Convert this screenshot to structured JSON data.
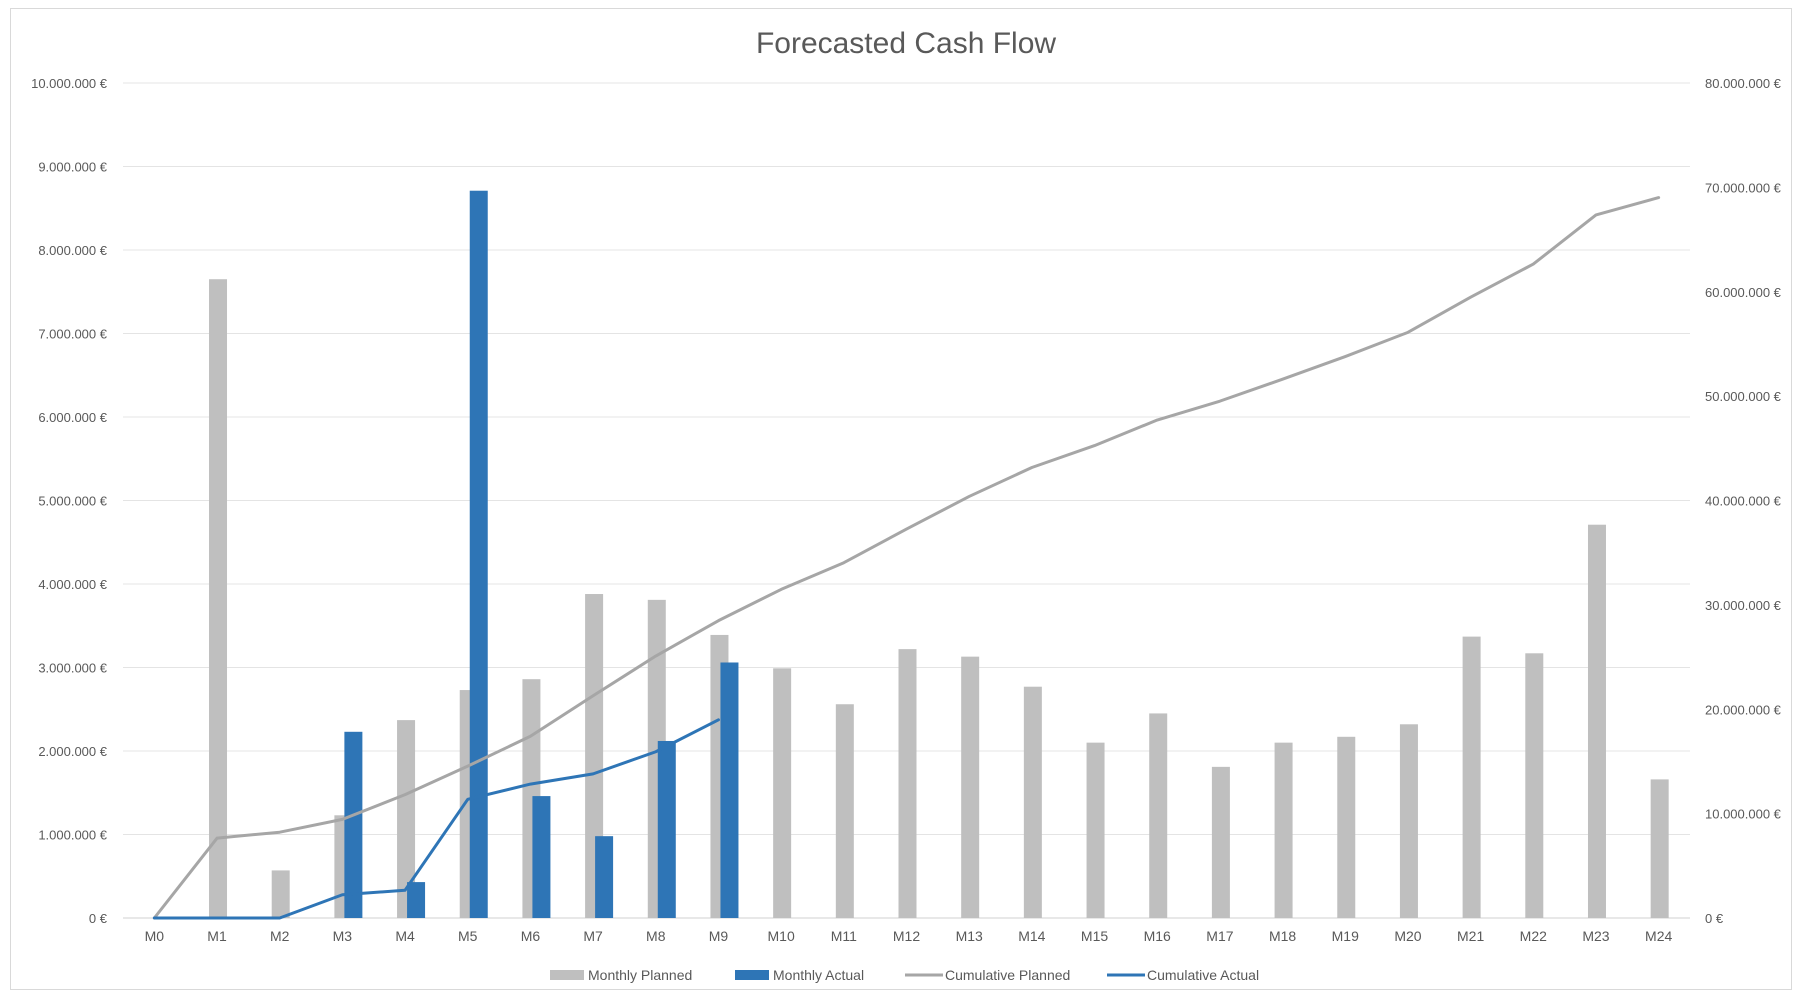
{
  "chart_data": {
    "type": "bar",
    "title": "Forecasted Cash Flow",
    "categories": [
      "M0",
      "M1",
      "M2",
      "M3",
      "M4",
      "M5",
      "M6",
      "M7",
      "M8",
      "M9",
      "M10",
      "M11",
      "M12",
      "M13",
      "M14",
      "M15",
      "M16",
      "M17",
      "M18",
      "M19",
      "M20",
      "M21",
      "M22",
      "M23",
      "M24"
    ],
    "y_left": {
      "range": [
        0,
        10000000
      ],
      "ticks": [
        0,
        1000000,
        2000000,
        3000000,
        4000000,
        5000000,
        6000000,
        7000000,
        8000000,
        9000000,
        10000000
      ],
      "tick_labels": [
        "0 €",
        "1.000.000 €",
        "2.000.000 €",
        "3.000.000 €",
        "4.000.000 €",
        "5.000.000 €",
        "6.000.000 €",
        "7.000.000 €",
        "8.000.000 €",
        "9.000.000 €",
        "10.000.000 €"
      ]
    },
    "y_right": {
      "range": [
        0,
        80000000
      ],
      "ticks": [
        0,
        10000000,
        20000000,
        30000000,
        40000000,
        50000000,
        60000000,
        70000000,
        80000000
      ],
      "tick_labels": [
        "0 €",
        "10.000.000 €",
        "20.000.000 €",
        "30.000.000 €",
        "40.000.000 €",
        "50.000.000 €",
        "60.000.000 €",
        "70.000.000 €",
        "80.000.000 €"
      ]
    },
    "grid": true,
    "legend_position": "bottom",
    "series": [
      {
        "name": "Monthly Planned",
        "kind": "bar",
        "axis": "left",
        "color": "#bfbfbf",
        "values": [
          0,
          7650000,
          570000,
          1230000,
          2370000,
          2730000,
          2860000,
          3880000,
          3810000,
          3390000,
          2990000,
          2560000,
          3220000,
          3130000,
          2770000,
          2100000,
          2450000,
          1810000,
          2100000,
          2170000,
          2320000,
          3370000,
          3170000,
          4710000,
          1660000
        ]
      },
      {
        "name": "Monthly Actual",
        "kind": "bar",
        "axis": "left",
        "color": "#2e75b6",
        "values": [
          0,
          0,
          0,
          2230000,
          430000,
          8710000,
          1460000,
          980000,
          2120000,
          3060000,
          null,
          null,
          null,
          null,
          null,
          null,
          null,
          null,
          null,
          null,
          null,
          null,
          null,
          null,
          null
        ]
      },
      {
        "name": "Cumulative Planned",
        "kind": "line",
        "axis": "right",
        "color": "#a6a6a6",
        "values": [
          0,
          7650000,
          8220000,
          9450000,
          11820000,
          14550000,
          17410000,
          21290000,
          25100000,
          28490000,
          31480000,
          34040000,
          37260000,
          40390000,
          43160000,
          45260000,
          47710000,
          49520000,
          51620000,
          53790000,
          56110000,
          59480000,
          62650000,
          67360000,
          69020000
        ]
      },
      {
        "name": "Cumulative Actual",
        "kind": "line",
        "axis": "right",
        "color": "#2e75b6",
        "values": [
          0,
          0,
          0,
          2230000,
          2660000,
          11370000,
          12830000,
          13810000,
          15930000,
          18990000,
          null,
          null,
          null,
          null,
          null,
          null,
          null,
          null,
          null,
          null,
          null,
          null,
          null,
          null,
          null
        ]
      }
    ]
  }
}
